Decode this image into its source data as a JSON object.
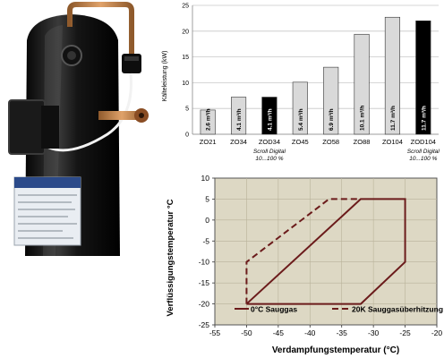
{
  "photo": {
    "description_icon": "scroll-compressor-photo",
    "colors": {
      "body": "#1a1a1a",
      "pipe": "#c98a4e",
      "bg": "#ffffff"
    }
  },
  "chart_data": [
    {
      "type": "bar",
      "ylabel": "Kälteleistung (kW)",
      "ylim": [
        0,
        25
      ],
      "yticks": [
        0,
        5,
        10,
        15,
        20,
        25
      ],
      "grid": true,
      "categories": [
        "ZO21",
        "ZO34",
        "ZOD34",
        "ZO45",
        "ZO58",
        "ZO88",
        "ZO104",
        "ZOD104"
      ],
      "values": [
        4.7,
        7.2,
        7.2,
        10.1,
        13.0,
        19.4,
        22.7,
        22.0
      ],
      "bar_labels": [
        "2.6 m³/h",
        "4.1 m³/h",
        "4.1 m³/h",
        "5.4 m³/h",
        "6.9 m³/h",
        "10.1 m³/h",
        "11.7 m³/h",
        "11.7 m³/h"
      ],
      "bar_colors": [
        "#d9d9d9",
        "#d9d9d9",
        "#000000",
        "#d9d9d9",
        "#d9d9d9",
        "#d9d9d9",
        "#d9d9d9",
        "#000000"
      ],
      "annotations": [
        {
          "category": "ZOD34",
          "lines": [
            "Scroll Digital",
            "10...100 %"
          ]
        },
        {
          "category": "ZOD104",
          "lines": [
            "Scroll Digital",
            "10...100 %"
          ]
        }
      ]
    },
    {
      "type": "line",
      "xlabel": "Verdampfungstemperatur (°C)",
      "ylabel": "Verflüssigungstemperatur °C",
      "xlim": [
        -55,
        -20
      ],
      "ylim": [
        -25,
        10
      ],
      "xticks": [
        -55,
        -50,
        -45,
        -40,
        -35,
        -30,
        -25,
        -20
      ],
      "yticks": [
        -25,
        -20,
        -15,
        -10,
        -5,
        0,
        5,
        10
      ],
      "background": "#ddd8c4",
      "series": [
        {
          "name": "0°C Sauggas",
          "style": "solid",
          "color": "#6b1b1b",
          "x": [
            -50,
            -32,
            -25,
            -25,
            -32,
            -50
          ],
          "y": [
            -20,
            5,
            5,
            -10,
            -20,
            -20
          ]
        },
        {
          "name": "20K Sauggasüberhitzung",
          "style": "dashed",
          "color": "#6b1b1b",
          "x": [
            -50,
            -50,
            -37,
            -32
          ],
          "y": [
            -20,
            -10,
            5,
            5
          ]
        }
      ],
      "legend_position": "bottom"
    }
  ]
}
